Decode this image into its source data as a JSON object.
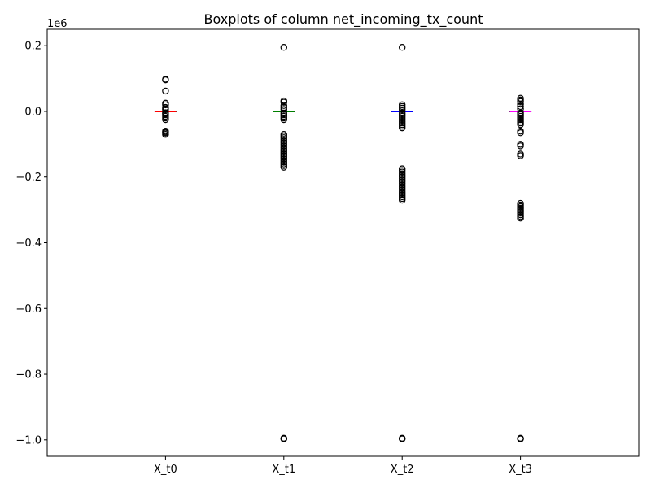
{
  "chart_data": {
    "type": "boxplot",
    "title": "Boxplots of column net_incoming_tx_count",
    "xlabel": "",
    "ylabel": "",
    "y_offset_label": "1e6",
    "ylim": [
      -1.05,
      0.25
    ],
    "yticks": [
      0.2,
      0.0,
      -0.2,
      -0.4,
      -0.6,
      -0.8,
      -1.0
    ],
    "ytick_labels": [
      "0.2",
      "0.0",
      "−0.2",
      "−0.4",
      "−0.6",
      "−0.8",
      "−1.0"
    ],
    "grid": false,
    "categories": [
      "X_t0",
      "X_t1",
      "X_t2",
      "X_t3"
    ],
    "series": [
      {
        "category": "X_t0",
        "color": "#ff0000",
        "median": 0.0,
        "q1": -0.001,
        "q3": 0.001,
        "whisker_low": -0.002,
        "whisker_high": 0.002,
        "outliers": [
          0.098,
          0.096,
          0.062,
          0.025,
          0.02,
          0.012,
          0.008,
          0.005,
          -0.004,
          -0.006,
          -0.01,
          -0.015,
          -0.02,
          -0.025,
          -0.06,
          -0.063,
          -0.066,
          -0.07
        ]
      },
      {
        "category": "X_t1",
        "color": "#008000",
        "median": 0.0,
        "q1": -0.001,
        "q3": 0.001,
        "whisker_low": -0.002,
        "whisker_high": 0.002,
        "outliers": [
          0.195,
          0.032,
          0.028,
          0.018,
          0.012,
          0.006,
          -0.005,
          -0.01,
          -0.015,
          -0.02,
          -0.025,
          -0.07,
          -0.075,
          -0.08,
          -0.085,
          -0.09,
          -0.095,
          -0.1,
          -0.105,
          -0.11,
          -0.115,
          -0.12,
          -0.125,
          -0.13,
          -0.135,
          -0.14,
          -0.145,
          -0.15,
          -0.155,
          -0.16,
          -0.165,
          -0.17,
          -0.995,
          -0.997
        ]
      },
      {
        "category": "X_t2",
        "color": "#0000ff",
        "median": 0.0,
        "q1": -0.001,
        "q3": 0.001,
        "whisker_low": -0.002,
        "whisker_high": 0.002,
        "outliers": [
          0.195,
          0.02,
          0.015,
          0.01,
          0.005,
          -0.005,
          -0.01,
          -0.015,
          -0.02,
          -0.025,
          -0.03,
          -0.035,
          -0.04,
          -0.045,
          -0.05,
          -0.175,
          -0.18,
          -0.185,
          -0.19,
          -0.195,
          -0.2,
          -0.205,
          -0.21,
          -0.215,
          -0.22,
          -0.225,
          -0.23,
          -0.235,
          -0.24,
          -0.245,
          -0.25,
          -0.255,
          -0.26,
          -0.265,
          -0.27,
          -0.995,
          -0.997
        ]
      },
      {
        "category": "X_t3",
        "color": "#ff00ff",
        "median": 0.0,
        "q1": -0.001,
        "q3": 0.001,
        "whisker_low": -0.002,
        "whisker_high": 0.002,
        "outliers": [
          0.04,
          0.035,
          0.03,
          0.022,
          0.015,
          0.008,
          -0.005,
          -0.01,
          -0.015,
          -0.02,
          -0.025,
          -0.03,
          -0.035,
          -0.04,
          -0.06,
          -0.065,
          -0.1,
          -0.105,
          -0.13,
          -0.135,
          -0.28,
          -0.285,
          -0.29,
          -0.295,
          -0.3,
          -0.305,
          -0.31,
          -0.315,
          -0.32,
          -0.325,
          -0.995,
          -0.997
        ]
      }
    ]
  }
}
